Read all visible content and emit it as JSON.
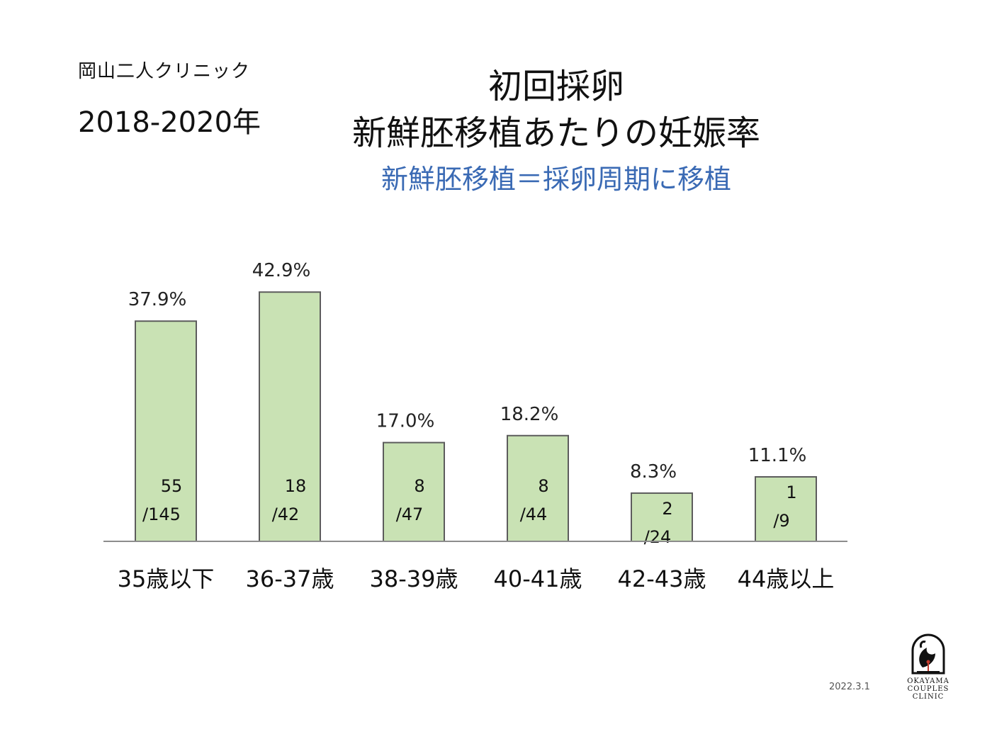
{
  "header": {
    "clinic_name": "岡山二人クリニック",
    "year_range": "2018-2020年",
    "title_line1": "初回採卵",
    "title_line2": "新鮮胚移植あたりの妊娠率",
    "subtitle": "新鮮胚移植＝採卵周期に移植"
  },
  "footer": {
    "date": "2022.3.1",
    "logo_text": [
      "OKAYAMA",
      "COUPLES",
      "CLINIC"
    ]
  },
  "colors": {
    "bar_fill": "#c9e2b4",
    "bar_stroke": "#5c5c5c",
    "subtitle": "#3a6ab4"
  },
  "chart_data": {
    "type": "bar",
    "title": "新鮮胚移植あたりの妊娠率",
    "categories": [
      "35歳以下",
      "36-37歳",
      "38-39歳",
      "40-41歳",
      "42-43歳",
      "44歳以上"
    ],
    "values": [
      37.9,
      42.9,
      17.0,
      18.2,
      8.3,
      11.1
    ],
    "value_labels": [
      "37.9%",
      "42.9%",
      "17.0%",
      "18.2%",
      "8.3%",
      "11.1%"
    ],
    "numerators": [
      "55",
      "18",
      "8",
      "8",
      "2",
      "1"
    ],
    "denominators": [
      "/145",
      "/42",
      "/47",
      "/44",
      "/24",
      "/9"
    ],
    "ylim": [
      0,
      45
    ],
    "grid": false,
    "legend": "none"
  }
}
